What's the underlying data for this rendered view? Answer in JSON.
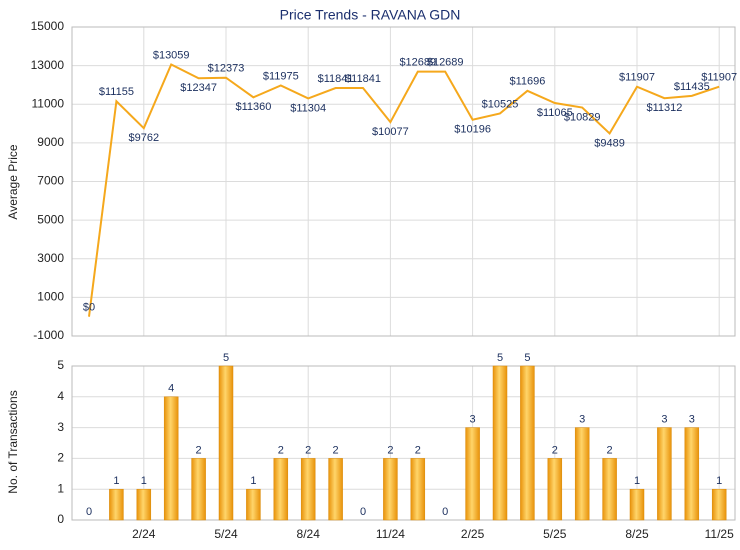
{
  "chart_data": [
    {
      "type": "line",
      "title": "Price Trends - RAVANA GDN",
      "ylabel": "Average Price",
      "color": "#f5a81c",
      "values": [
        0,
        11155,
        9762,
        13059,
        12347,
        12373,
        11360,
        11975,
        11304,
        11841,
        11841,
        10077,
        12689,
        12689,
        10196,
        10525,
        11696,
        11065,
        10829,
        9489,
        11907,
        11312,
        11435,
        11907
      ],
      "value_labels": [
        "$0",
        "$11155",
        "$9762",
        "$13059",
        "$12347",
        "$12373",
        "$11360",
        "$11975",
        "$11304",
        "$11841",
        "$11841",
        "$10077",
        "$12689",
        "$12689",
        "$10196",
        "$10525",
        "$11696",
        "$11065",
        "$10829",
        "$9489",
        "$11907",
        "$11312",
        "$11435",
        "$11907"
      ],
      "ylim": [
        -1000,
        15000
      ],
      "yticks": [
        -1000,
        1000,
        3000,
        5000,
        7000,
        9000,
        11000,
        13000,
        15000
      ],
      "grid": true
    },
    {
      "type": "bar",
      "ylabel": "No. of Transactions",
      "color": "#f5a81c",
      "categories": [
        null,
        null,
        "2/24",
        null,
        null,
        "5/24",
        null,
        null,
        "8/24",
        null,
        null,
        "11/24",
        null,
        null,
        "2/25",
        null,
        null,
        "5/25",
        null,
        null,
        "8/25",
        null,
        null,
        "11/25"
      ],
      "values": [
        0,
        1,
        1,
        4,
        2,
        5,
        1,
        2,
        2,
        2,
        0,
        2,
        2,
        0,
        3,
        5,
        5,
        2,
        3,
        2,
        1,
        3,
        3,
        1
      ],
      "ylim": [
        0,
        5
      ],
      "yticks": [
        0,
        1,
        2,
        3,
        4,
        5
      ],
      "grid": true
    }
  ]
}
